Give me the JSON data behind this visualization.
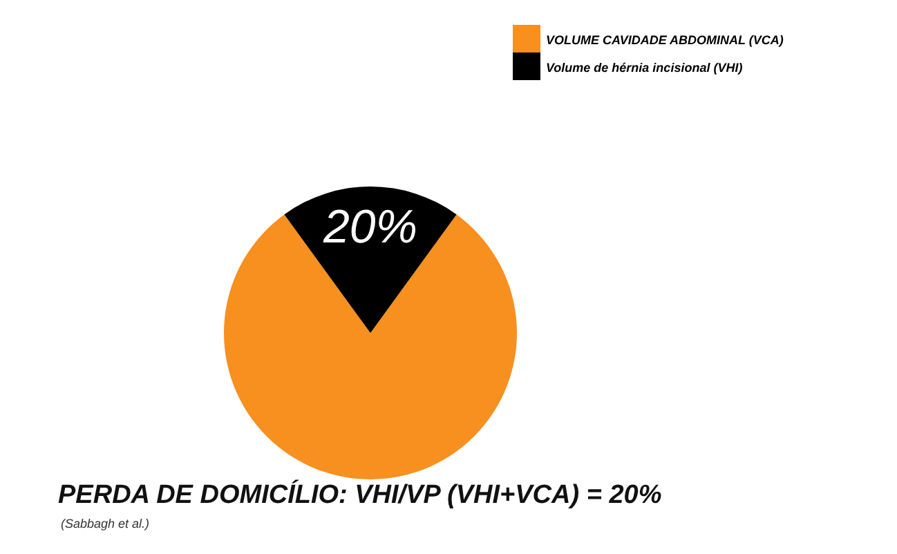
{
  "chart_data": {
    "type": "pie",
    "title": "PERDA DE DOMICÍLIO: VHI/VP (VHI+VCA) = 20%",
    "annotations": [
      "(Sabbagh et al.)"
    ],
    "categories": [
      "VOLUME CAVIDADE ABDOMINAL (VCA)",
      "Volume de hérnia incisional (VHI)"
    ],
    "values": [
      80,
      20
    ],
    "colors": [
      "#f7901e",
      "#000000"
    ],
    "value_labels": [
      null,
      "20%"
    ],
    "legend": "top right"
  }
}
